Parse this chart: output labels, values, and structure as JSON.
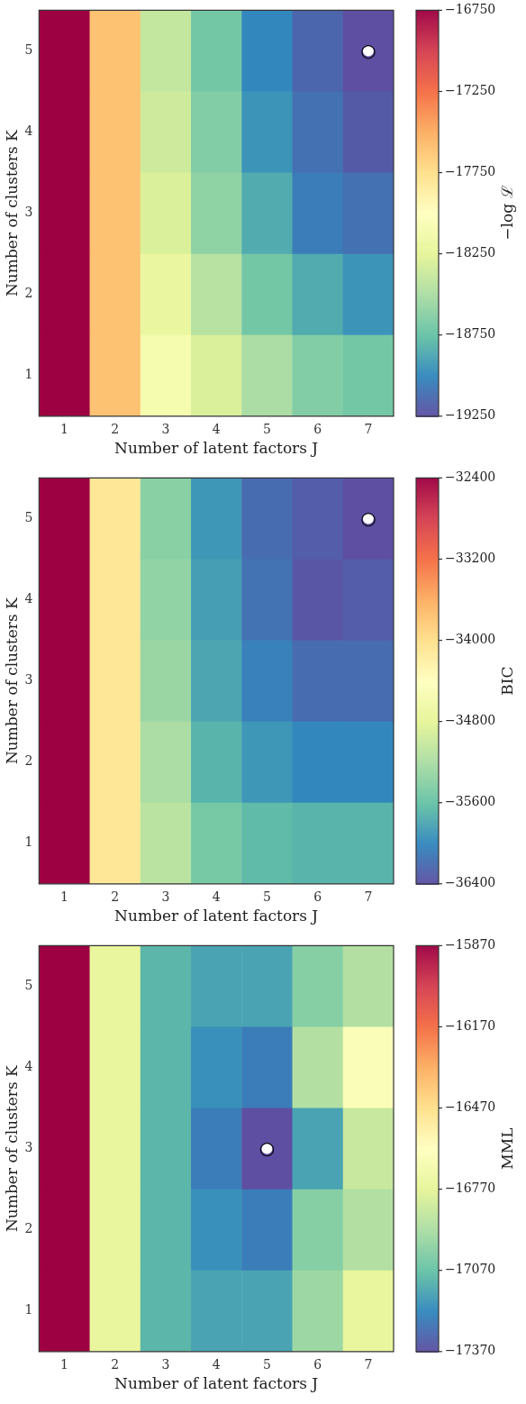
{
  "chart_data": [
    {
      "type": "heatmap",
      "xlabel": "Number of latent factors J",
      "ylabel": "Number of clusters K",
      "clabel": "−log ℒ",
      "categories": [
        "1",
        "2",
        "3",
        "4",
        "5",
        "6",
        "7"
      ],
      "y_categories": [
        "5",
        "4",
        "3",
        "2",
        "1"
      ],
      "cells": [
        [
          -16750,
          -17600,
          -18400,
          -18700,
          -19000,
          -19150,
          -19250
        ],
        [
          -16750,
          -17600,
          -18350,
          -18650,
          -18950,
          -19100,
          -19200
        ],
        [
          -16750,
          -17600,
          -18300,
          -18600,
          -18850,
          -19050,
          -19100
        ],
        [
          -16750,
          -17600,
          -18200,
          -18450,
          -18700,
          -18850,
          -18950
        ],
        [
          -16750,
          -17600,
          -18100,
          -18300,
          -18500,
          -18650,
          -18700
        ]
      ],
      "clim": [
        -19250,
        -16750
      ],
      "cticks": [
        -19250,
        -18750,
        -18250,
        -17750,
        -17250,
        -16750
      ],
      "annotations": [
        {
          "text": "○",
          "x": "7",
          "y": "5"
        }
      ]
    },
    {
      "type": "heatmap",
      "xlabel": "Number of latent factors J",
      "ylabel": "Number of clusters K",
      "clabel": "BIC",
      "categories": [
        "1",
        "2",
        "3",
        "4",
        "5",
        "6",
        "7"
      ],
      "y_categories": [
        "5",
        "4",
        "3",
        "2",
        "1"
      ],
      "cells": [
        [
          -32400,
          -34100,
          -35400,
          -35900,
          -36200,
          -36300,
          -36400
        ],
        [
          -32400,
          -34100,
          -35350,
          -35850,
          -36150,
          -36350,
          -36300
        ],
        [
          -32400,
          -34100,
          -35300,
          -35800,
          -36050,
          -36200,
          -36200
        ],
        [
          -32400,
          -34100,
          -35200,
          -35700,
          -35900,
          -36000,
          -36000
        ],
        [
          -32400,
          -34100,
          -35100,
          -35500,
          -35650,
          -35700,
          -35700
        ]
      ],
      "clim": [
        -36400,
        -32400
      ],
      "cticks": [
        -36400,
        -35600,
        -34800,
        -34000,
        -33200,
        -32400
      ],
      "annotations": [
        {
          "text": "○",
          "x": "7",
          "y": "5"
        }
      ]
    },
    {
      "type": "heatmap",
      "xlabel": "Number of latent factors J",
      "ylabel": "Number of clusters K",
      "clabel": "MML",
      "categories": [
        "1",
        "2",
        "3",
        "4",
        "5",
        "6",
        "7"
      ],
      "y_categories": [
        "5",
        "4",
        "3",
        "2",
        "1"
      ],
      "cells": [
        [
          -15870,
          -16750,
          -17100,
          -17150,
          -17150,
          -17000,
          -16900
        ],
        [
          -15870,
          -16750,
          -17100,
          -17200,
          -17250,
          -16900,
          -16650
        ],
        [
          -15870,
          -16750,
          -17100,
          -17250,
          -17370,
          -17150,
          -16850
        ],
        [
          -15870,
          -16750,
          -17100,
          -17200,
          -17250,
          -17000,
          -16900
        ],
        [
          -15870,
          -16750,
          -17100,
          -17150,
          -17150,
          -16950,
          -16750
        ]
      ],
      "clim": [
        -17370,
        -15870
      ],
      "cticks": [
        -17370,
        -17070,
        -16770,
        -16470,
        -16170,
        -15870
      ],
      "annotations": [
        {
          "text": "○",
          "x": "5",
          "y": "3"
        }
      ]
    }
  ]
}
